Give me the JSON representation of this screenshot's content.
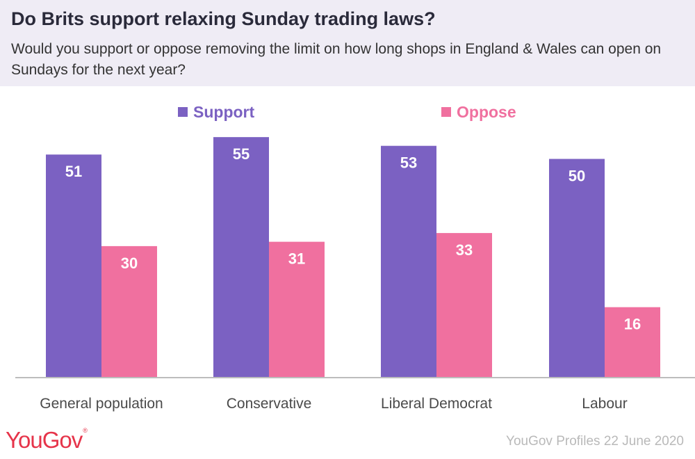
{
  "title": "Do Brits support relaxing Sunday trading laws?",
  "subtitle": "Would you support or oppose removing the limit on how long shops in England & Wales can open on Sundays for the next year?",
  "legend": {
    "support": "Support",
    "oppose": "Oppose"
  },
  "logo": "YouGov",
  "source": "YouGov Profiles 22 June 2020",
  "colors": {
    "support": "#7b61c2",
    "oppose": "#f0709f",
    "header_bg": "#efecf5",
    "axis": "#bdbdbd"
  },
  "chart_data": {
    "type": "bar",
    "categories": [
      "General population",
      "Conservative",
      "Liberal Democrat",
      "Labour"
    ],
    "series": [
      {
        "name": "Support",
        "values": [
          51,
          55,
          53,
          50
        ]
      },
      {
        "name": "Oppose",
        "values": [
          30,
          31,
          33,
          16
        ]
      }
    ],
    "ylim": [
      0,
      60
    ],
    "legend_position": "top",
    "grid": false
  }
}
